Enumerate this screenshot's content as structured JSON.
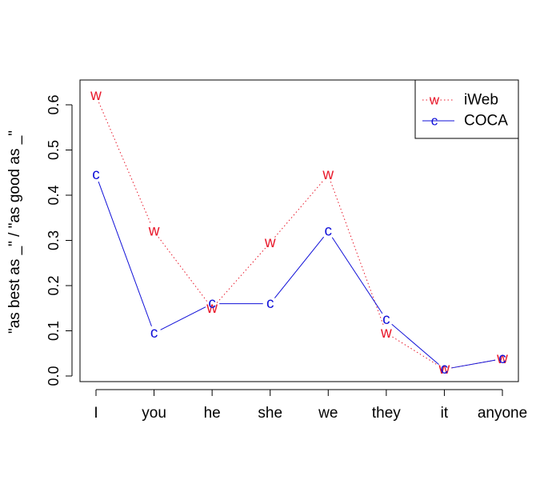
{
  "chart_data": {
    "type": "line",
    "title": "",
    "xlabel": "",
    "ylabel": "\"as best as _\" / \"as good as _\"",
    "categories": [
      "I",
      "you",
      "he",
      "she",
      "we",
      "they",
      "it",
      "anyone"
    ],
    "y_ticks": [
      "0.0",
      "0.1",
      "0.2",
      "0.3",
      "0.4",
      "0.5",
      "0.6"
    ],
    "ylim": [
      0,
      0.62
    ],
    "grid": false,
    "legend_position": "top-right",
    "series": [
      {
        "name": "iWeb",
        "marker": "w",
        "color": "#e8182a",
        "line_style": "dotted",
        "values": [
          0.62,
          0.32,
          0.15,
          0.295,
          0.445,
          0.095,
          0.015,
          0.038
        ]
      },
      {
        "name": "COCA",
        "marker": "c",
        "color": "#1010d8",
        "line_style": "solid",
        "values": [
          0.445,
          0.095,
          0.16,
          0.16,
          0.32,
          0.125,
          0.015,
          0.038
        ]
      }
    ]
  }
}
